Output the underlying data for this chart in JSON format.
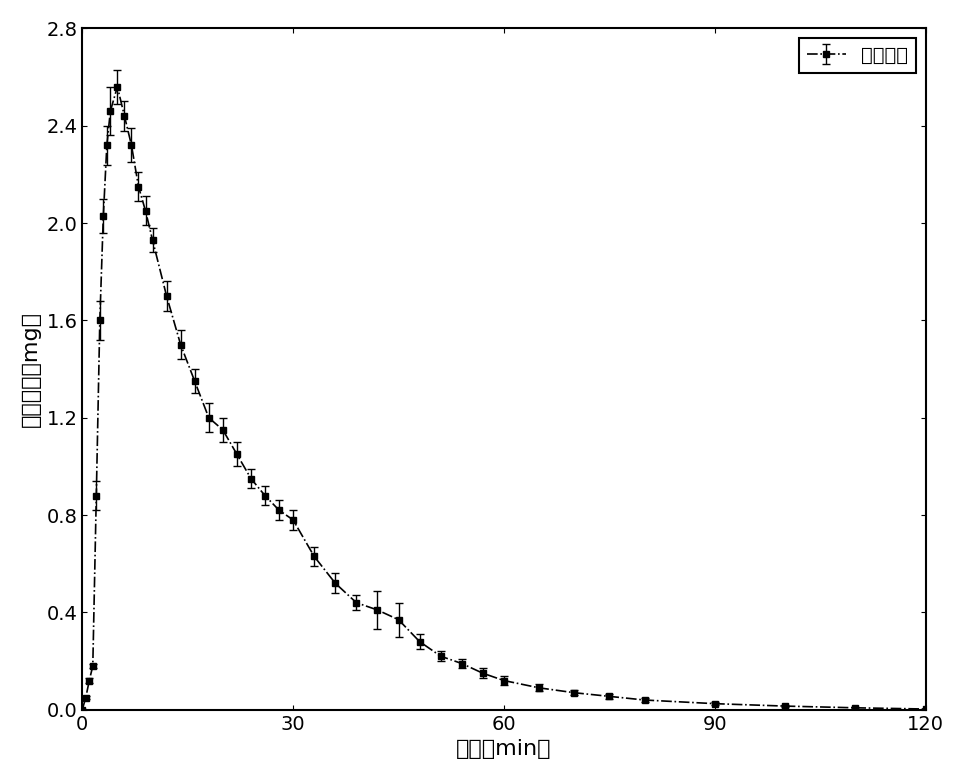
{
  "x": [
    0,
    0.5,
    1,
    1.5,
    2,
    2.5,
    3,
    3.5,
    4,
    5,
    6,
    7,
    8,
    9,
    10,
    12,
    14,
    16,
    18,
    20,
    22,
    24,
    26,
    28,
    30,
    33,
    36,
    39,
    42,
    45,
    48,
    51,
    54,
    57,
    60,
    65,
    70,
    75,
    80,
    90,
    100,
    110,
    120
  ],
  "y": [
    0.0,
    0.05,
    0.12,
    0.18,
    0.88,
    1.6,
    2.03,
    2.32,
    2.46,
    2.56,
    2.44,
    2.32,
    2.15,
    2.05,
    1.93,
    1.7,
    1.5,
    1.35,
    1.2,
    1.15,
    1.05,
    0.95,
    0.88,
    0.82,
    0.78,
    0.63,
    0.52,
    0.44,
    0.41,
    0.37,
    0.28,
    0.22,
    0.19,
    0.15,
    0.12,
    0.09,
    0.07,
    0.055,
    0.04,
    0.025,
    0.015,
    0.008,
    0.003
  ],
  "yerr": [
    0.005,
    0.005,
    0.01,
    0.01,
    0.06,
    0.08,
    0.07,
    0.08,
    0.1,
    0.07,
    0.06,
    0.07,
    0.06,
    0.06,
    0.05,
    0.06,
    0.06,
    0.05,
    0.06,
    0.05,
    0.05,
    0.04,
    0.04,
    0.04,
    0.04,
    0.04,
    0.04,
    0.03,
    0.08,
    0.07,
    0.03,
    0.02,
    0.02,
    0.02,
    0.02,
    0.015,
    0.01,
    0.01,
    0.008,
    0.007,
    0.005,
    0.003,
    0.002
  ],
  "xlabel": "时间（min）",
  "ylabel": "甲醇含量（mg）",
  "legend_label": "甲醇含量",
  "xlim": [
    0,
    120
  ],
  "ylim": [
    0.0,
    2.8
  ],
  "xticks": [
    0,
    30,
    60,
    90,
    120
  ],
  "yticks": [
    0.0,
    0.4,
    0.8,
    1.2,
    1.6,
    2.0,
    2.4,
    2.8
  ],
  "line_color": "#000000",
  "marker": "s",
  "markersize": 4,
  "linewidth": 1.2,
  "capsize": 3,
  "elinewidth": 1.0,
  "background_color": "#ffffff",
  "xlabel_fontsize": 16,
  "ylabel_fontsize": 16,
  "tick_fontsize": 14,
  "legend_fontsize": 14
}
